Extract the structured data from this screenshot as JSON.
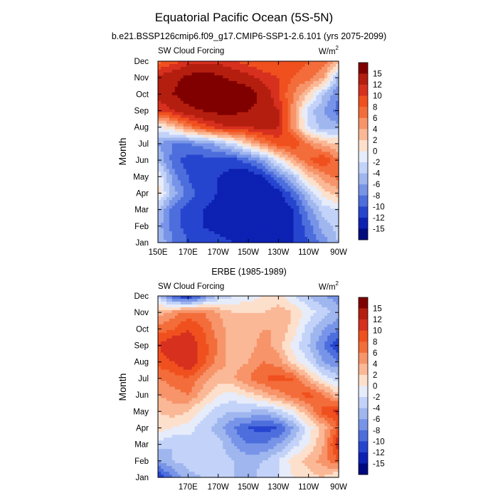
{
  "title": "Equatorial Pacific Ocean (5S-5N)",
  "chart_data": [
    {
      "type": "heatmap",
      "subtitle": "b.e21.BSSP126cmip6.f09_g17.CMIP6-SSP1-2.6.101 (yrs 2075-2099)",
      "left_label": "SW Cloud Forcing",
      "units_base": "W/m",
      "units_exp": "2",
      "ylabel": "Month",
      "y_ticks": [
        "Jan",
        "Feb",
        "Mar",
        "Apr",
        "May",
        "Jun",
        "Jul",
        "Aug",
        "Sep",
        "Oct",
        "Nov",
        "Dec"
      ],
      "x_ticks": [
        "150E",
        "170E",
        "170W",
        "150W",
        "130W",
        "110W",
        "90W"
      ],
      "x_range_deg_east": [
        150,
        270
      ],
      "grid_longitudes": [
        150,
        160,
        170,
        180,
        190,
        200,
        210,
        220,
        230,
        240,
        250,
        260,
        270
      ],
      "values": [
        [
          -4,
          -8,
          -10,
          -11,
          -11,
          -12,
          -12,
          -13,
          -12,
          -12,
          -10,
          -7,
          -4
        ],
        [
          -5,
          -9,
          -11,
          -12,
          -13,
          -14,
          -14,
          -14,
          -13,
          -12,
          -9,
          -5,
          -3
        ],
        [
          -4,
          -9,
          -11,
          -12,
          -13,
          -15,
          -15,
          -15,
          -14,
          -12,
          -7,
          -3,
          -2
        ],
        [
          1,
          -5,
          -9,
          -11,
          -12,
          -14,
          -15,
          -15,
          -13,
          -9,
          -4,
          1,
          3
        ],
        [
          0,
          -7,
          -10,
          -12,
          -12,
          -13,
          -14,
          -12,
          -8,
          -4,
          2,
          5,
          7
        ],
        [
          -4,
          -9,
          -11,
          -11,
          -11,
          -11,
          -9,
          -6,
          -1,
          4,
          8,
          10,
          6
        ],
        [
          -6,
          -8,
          -8,
          -7,
          -5,
          -2,
          2,
          6,
          9,
          10,
          6,
          3,
          2
        ],
        [
          -1,
          2,
          6,
          9,
          11,
          12,
          12,
          13,
          12,
          5,
          -2,
          -5,
          -5
        ],
        [
          10,
          12,
          14,
          15,
          16,
          16,
          15,
          14,
          12,
          5,
          -3,
          -6,
          -9
        ],
        [
          13,
          15,
          17,
          18,
          18,
          18,
          17,
          14,
          10,
          6,
          2,
          -4,
          -8
        ],
        [
          13,
          14,
          16,
          17,
          16,
          14,
          13,
          11,
          10,
          8,
          7,
          4,
          -5
        ],
        [
          7,
          9,
          11,
          11,
          11,
          10,
          9,
          8,
          9,
          9,
          8,
          7,
          3
        ]
      ]
    },
    {
      "type": "heatmap",
      "subtitle": "ERBE (1985-1989)",
      "left_label": "SW Cloud Forcing",
      "units_base": "W/m",
      "units_exp": "2",
      "ylabel": "Month",
      "y_ticks": [
        "Jan",
        "Feb",
        "Mar",
        "Apr",
        "May",
        "Jun",
        "Jul",
        "Aug",
        "Sep",
        "Oct",
        "Nov",
        "Dec"
      ],
      "x_ticks": [
        "170E",
        "170W",
        "150W",
        "130W",
        "110W",
        "90W"
      ],
      "x_range_deg_east": [
        150,
        270
      ],
      "grid_longitudes": [
        150,
        160,
        170,
        180,
        190,
        200,
        210,
        220,
        230,
        240,
        250,
        260,
        270
      ],
      "values": [
        [
          -12,
          -8,
          -5,
          -4,
          -3,
          -4,
          -5,
          -3,
          -2,
          0,
          1,
          2,
          -1
        ],
        [
          -6,
          -4,
          -3,
          -2,
          -3,
          -4,
          -5,
          -4,
          -2,
          1,
          3,
          5,
          8
        ],
        [
          -3,
          -4,
          -3,
          -2,
          -3,
          -6,
          -8,
          -8,
          -6,
          -3,
          0,
          4,
          12
        ],
        [
          1,
          0,
          -1,
          -3,
          -5,
          -8,
          -10,
          -11,
          -10,
          -6,
          -1,
          3,
          8
        ],
        [
          2,
          3,
          2,
          -1,
          -3,
          -4,
          -4,
          -5,
          -3,
          0,
          4,
          9,
          11
        ],
        [
          4,
          5,
          6,
          3,
          0,
          -1,
          1,
          3,
          5,
          7,
          9,
          6,
          2
        ],
        [
          6,
          7,
          8,
          5,
          3,
          4,
          6,
          8,
          9,
          8,
          3,
          -1,
          -3
        ],
        [
          9,
          10,
          12,
          9,
          5,
          3,
          4,
          6,
          5,
          1,
          -2,
          -6,
          -8
        ],
        [
          10,
          12,
          12,
          9,
          6,
          2,
          3,
          5,
          3,
          -1,
          -4,
          -8,
          -12
        ],
        [
          7,
          8,
          10,
          8,
          5,
          3,
          3,
          4,
          4,
          1,
          -3,
          -6,
          -8
        ],
        [
          3,
          5,
          7,
          6,
          4,
          2,
          2,
          2,
          3,
          2,
          -1,
          -3,
          -5
        ],
        [
          -3,
          -10,
          -13,
          -8,
          -4,
          -2,
          -1,
          0,
          1,
          -2,
          -4,
          -6,
          -7
        ]
      ]
    }
  ],
  "colorbar": {
    "labels": [
      "15",
      "12",
      "10",
      "8",
      "6",
      "4",
      "2",
      "0",
      "-2",
      "-4",
      "-6",
      "-8",
      "-10",
      "-12",
      "-15"
    ],
    "colors": [
      "#800000",
      "#b41e0f",
      "#d7301f",
      "#f0501e",
      "#f36d3a",
      "#f7946a",
      "#fab896",
      "#fde0cc",
      "#e6ecfa",
      "#c3d2f8",
      "#9fb6ee",
      "#7894e8",
      "#4d6edc",
      "#2645cf",
      "#0d21b3",
      "#000a80"
    ],
    "levels": [
      15,
      12,
      10,
      8,
      6,
      4,
      2,
      0,
      -2,
      -4,
      -6,
      -8,
      -10,
      -12,
      -15
    ]
  }
}
